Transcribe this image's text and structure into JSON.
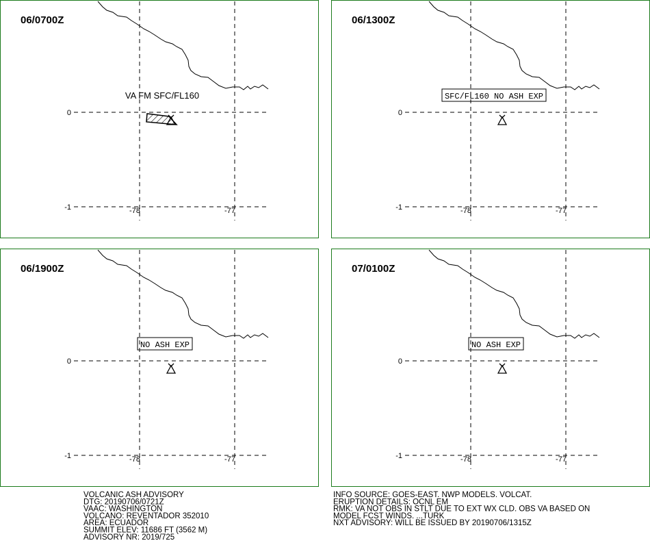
{
  "panels": [
    {
      "time": "06/0700Z",
      "annotation": "VA FM SFC/FL160",
      "boxed": false,
      "ash": true
    },
    {
      "time": "06/1300Z",
      "annotation": "SFC/FL160 NO ASH EXP",
      "boxed": true,
      "ash": false
    },
    {
      "time": "06/1900Z",
      "annotation": "NO ASH EXP",
      "boxed": true,
      "ash": false
    },
    {
      "time": "07/0100Z",
      "annotation": "NO ASH EXP",
      "boxed": true,
      "ash": false
    }
  ],
  "grid": {
    "lat": [
      "0",
      "-1"
    ],
    "lon": [
      "-78",
      "-77"
    ]
  },
  "advisory_left": [
    "VOLCANIC ASH ADVISORY",
    "DTG: 20190706/0721Z",
    "VAAC: WASHINGTON",
    "VOLCANO: REVENTADOR 352010",
    "AREA: ECUADOR",
    "SUMMIT ELEV: 11686 FT (3562 M)",
    "ADVISORY NR: 2019/725"
  ],
  "advisory_right": [
    "INFO SOURCE: GOES-EAST. NWP MODELS. VOLCAT.",
    "ERUPTION DETAILS: OCNL EM",
    "RMK: VA NOT OBS IN STLT DUE TO EXT WX CLD. OBS VA BASED ON",
    "MODEL FCST WINDS. ...TURK",
    "NXT ADVISORY: WILL BE ISSUED BY 20190706/1315Z"
  ]
}
